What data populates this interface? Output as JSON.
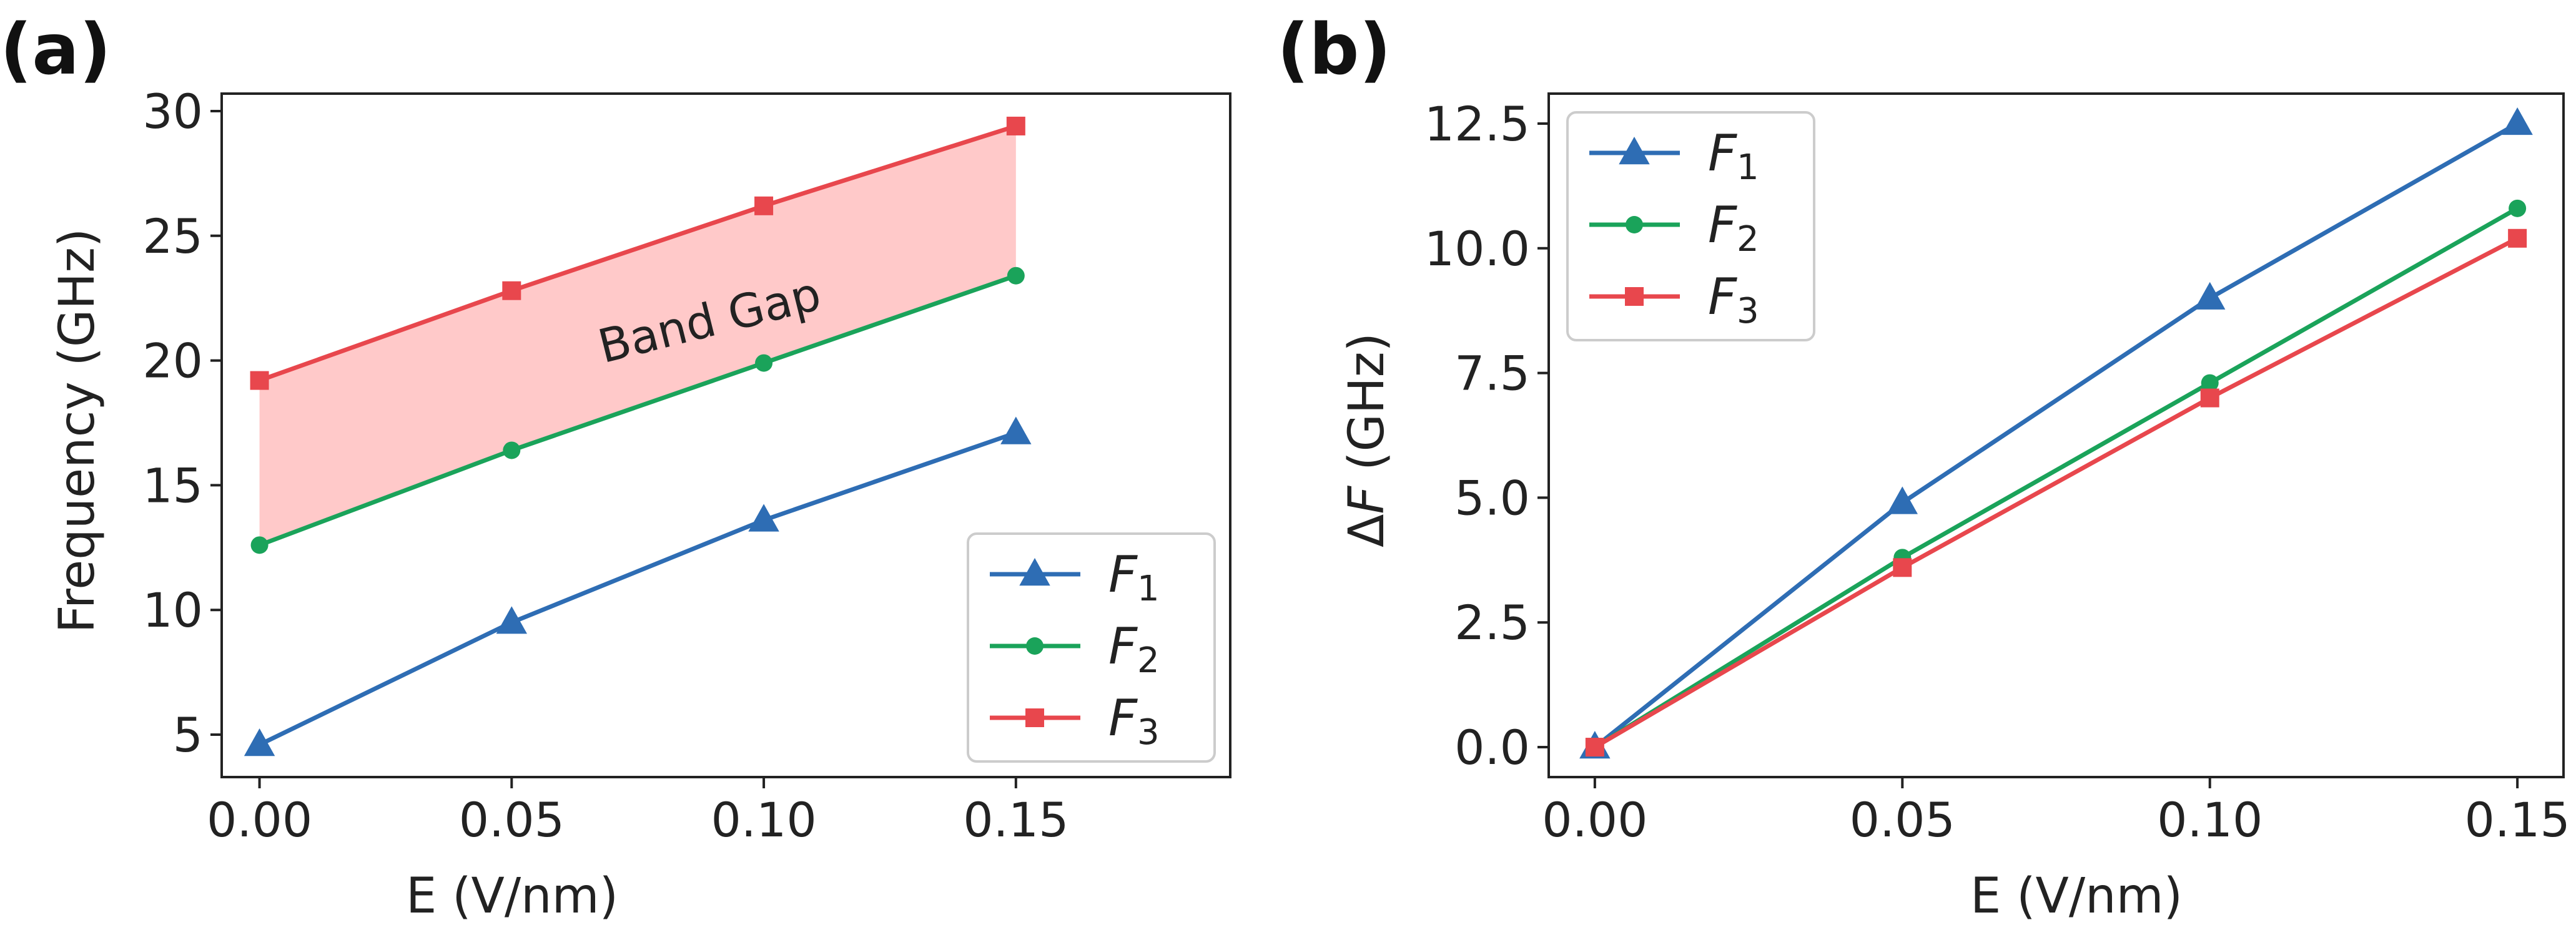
{
  "chart_data": [
    {
      "panel": "(a)",
      "type": "line",
      "title": "",
      "xlabel": "E (V/nm)",
      "ylabel": "Frequency (GHz)",
      "x": [
        0.0,
        0.05,
        0.1,
        0.15
      ],
      "xticks": [
        "0.00",
        "0.05",
        "0.10",
        "0.15"
      ],
      "yticks": [
        "5",
        "10",
        "15",
        "20",
        "25",
        "30"
      ],
      "xlim": [
        -0.0075,
        0.1925
      ],
      "ylim": [
        3.3,
        30.7
      ],
      "series": [
        {
          "name": "F1",
          "base": "F",
          "sub": "1",
          "color": "#2e6db4",
          "marker": "triangle",
          "values": [
            4.6,
            9.5,
            13.6,
            17.1
          ]
        },
        {
          "name": "F2",
          "base": "F",
          "sub": "2",
          "color": "#1aa35a",
          "marker": "circle",
          "values": [
            12.6,
            16.4,
            19.9,
            23.4
          ]
        },
        {
          "name": "F3",
          "base": "F",
          "sub": "3",
          "color": "#e8474d",
          "marker": "square",
          "values": [
            19.2,
            22.8,
            26.2,
            29.4
          ]
        }
      ],
      "fill_between": {
        "lower": "F2",
        "upper": "F3",
        "color": "#ffc9c9"
      },
      "annotation": "Band Gap",
      "legend": "lower-right"
    },
    {
      "panel": "(b)",
      "type": "line",
      "title": "",
      "xlabel": "E (V/nm)",
      "ylabel_prefix": "Δ",
      "ylabel_var": "F",
      "ylabel_suffix": " (GHz)",
      "x": [
        0.0,
        0.05,
        0.1,
        0.15
      ],
      "xticks": [
        "0.00",
        "0.05",
        "0.10",
        "0.15"
      ],
      "yticks": [
        "0.0",
        "2.5",
        "5.0",
        "7.5",
        "10.0",
        "12.5"
      ],
      "xlim": [
        -0.0075,
        0.1575
      ],
      "ylim": [
        -0.6,
        13.1
      ],
      "series": [
        {
          "name": "F1",
          "base": "F",
          "sub": "1",
          "color": "#2e6db4",
          "marker": "triangle",
          "values": [
            0.0,
            4.9,
            9.0,
            12.5
          ]
        },
        {
          "name": "F2",
          "base": "F",
          "sub": "2",
          "color": "#1aa35a",
          "marker": "circle",
          "values": [
            0.0,
            3.8,
            7.3,
            10.8
          ]
        },
        {
          "name": "F3",
          "base": "F",
          "sub": "3",
          "color": "#e8474d",
          "marker": "square",
          "values": [
            0.0,
            3.6,
            7.0,
            10.2
          ]
        }
      ],
      "legend": "upper-left"
    }
  ]
}
